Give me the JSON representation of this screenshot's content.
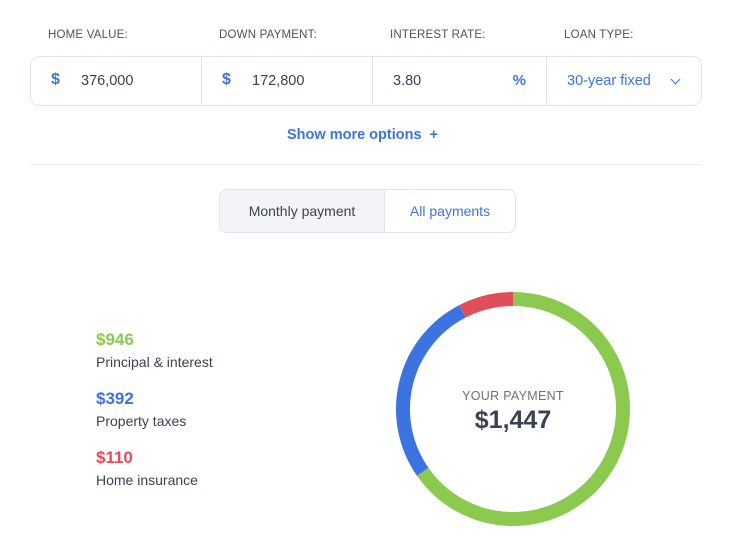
{
  "fields": {
    "home_value_label": "HOME VALUE:",
    "down_payment_label": "DOWN PAYMENT:",
    "interest_rate_label": "INTEREST RATE:",
    "loan_type_label": "LOAN TYPE:",
    "currency_symbol": "$",
    "home_value": "376,000",
    "down_payment": "172,800",
    "interest_rate": "3.80",
    "percent_symbol": "%",
    "loan_type": "30-year fixed"
  },
  "more_options": {
    "label": "Show more options",
    "icon": "+"
  },
  "tabs": {
    "monthly": "Monthly payment",
    "all": "All payments"
  },
  "breakdown": [
    {
      "amount": "$946",
      "label": "Principal & interest",
      "color": "#8bc94f"
    },
    {
      "amount": "$392",
      "label": "Property taxes",
      "color": "#3b74e0"
    },
    {
      "amount": "$110",
      "label": "Home insurance",
      "color": "#e04e5b"
    }
  ],
  "payment": {
    "label": "YOUR PAYMENT",
    "total": "$1,447"
  },
  "chart_data": {
    "type": "pie",
    "categories": [
      "Principal & interest",
      "Property taxes",
      "Home insurance"
    ],
    "values": [
      946,
      392,
      110
    ],
    "colors": [
      "#8bc94f",
      "#3b74e0",
      "#e04e5b"
    ]
  }
}
